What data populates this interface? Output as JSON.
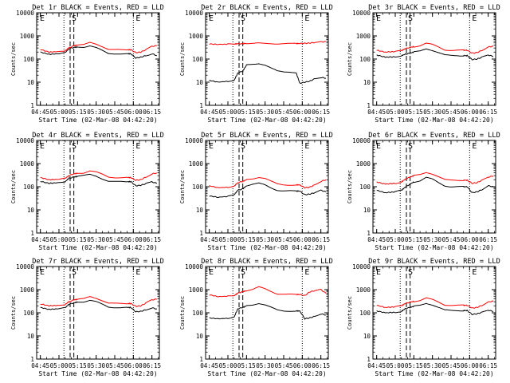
{
  "figure": {
    "xlabel": "Start Time (02-Mar-08 04:42:20)",
    "ylabel": "Counts/sec",
    "time_ticks": [
      "04:45",
      "05:00",
      "05:15",
      "05:30",
      "05:45",
      "06:00",
      "06:15"
    ],
    "y_ticks": [
      "1",
      "10",
      "100",
      "1000",
      "10000"
    ],
    "marker_labels": [
      "E",
      "S",
      "E"
    ],
    "colors": {
      "events": "#000000",
      "lld": "#ff0000"
    }
  },
  "chart_data": [
    {
      "type": "line",
      "title": "Det 1r  BLACK = Events, RED = LLD",
      "x": [
        "04:45",
        "04:52",
        "05:00",
        "05:05",
        "05:08",
        "05:12",
        "05:15",
        "05:20",
        "05:25",
        "05:30",
        "05:35",
        "05:40",
        "05:45",
        "05:50",
        "05:55",
        "05:58",
        "06:02",
        "06:06",
        "06:10",
        "06:15",
        "06:19"
      ],
      "series": [
        {
          "name": "Events",
          "values": [
            200,
            160,
            170,
            190,
            280,
            320,
            330,
            330,
            380,
            310,
            230,
            170,
            170,
            170,
            170,
            170,
            110,
            120,
            140,
            170,
            140
          ]
        },
        {
          "name": "LLD",
          "values": [
            260,
            200,
            210,
            230,
            300,
            380,
            400,
            410,
            520,
            450,
            350,
            260,
            250,
            250,
            250,
            250,
            190,
            200,
            250,
            350,
            380
          ]
        }
      ],
      "ylim": [
        1,
        10000
      ],
      "yscale": "log",
      "markers": {
        "E1": "04:45",
        "gap_start": "05:04",
        "S": "05:09",
        "S2": "05:12",
        "E2": "06:00"
      }
    },
    {
      "type": "line",
      "title": "Det 2r  BLACK = Events, RED = LLD",
      "x": [
        "04:45",
        "04:52",
        "05:00",
        "05:05",
        "05:08",
        "05:12",
        "05:15",
        "05:20",
        "05:25",
        "05:30",
        "05:35",
        "05:40",
        "05:45",
        "05:50",
        "05:55",
        "05:58",
        "06:02",
        "06:06",
        "06:10",
        "06:15",
        "06:19"
      ],
      "series": [
        {
          "name": "Events",
          "values": [
            12,
            10,
            11,
            12,
            25,
            30,
            55,
            60,
            65,
            55,
            40,
            30,
            28,
            28,
            26,
            9,
            10,
            11,
            14,
            16,
            15
          ]
        },
        {
          "name": "LLD",
          "values": [
            450,
            430,
            440,
            440,
            460,
            460,
            470,
            470,
            480,
            470,
            470,
            460,
            460,
            460,
            470,
            470,
            480,
            490,
            520,
            550,
            560
          ]
        }
      ],
      "ylim": [
        1,
        10000
      ],
      "yscale": "log",
      "markers": {
        "E1": "04:45",
        "gap_start": "05:04",
        "S": "05:09",
        "S2": "05:12",
        "E2": "06:00"
      }
    },
    {
      "type": "line",
      "title": "Det 3r  BLACK = Events, RED = LLD",
      "x": [
        "04:45",
        "04:52",
        "05:00",
        "05:05",
        "05:08",
        "05:12",
        "05:15",
        "05:20",
        "05:25",
        "05:30",
        "05:35",
        "05:40",
        "05:45",
        "05:50",
        "05:55",
        "05:58",
        "06:02",
        "06:06",
        "06:10",
        "06:15",
        "06:19"
      ],
      "series": [
        {
          "name": "Events",
          "values": [
            150,
            120,
            125,
            140,
            160,
            180,
            200,
            220,
            280,
            240,
            190,
            150,
            140,
            140,
            140,
            140,
            95,
            100,
            120,
            150,
            130
          ]
        },
        {
          "name": "LLD",
          "values": [
            240,
            200,
            210,
            230,
            280,
            320,
            340,
            380,
            480,
            420,
            330,
            250,
            240,
            240,
            240,
            240,
            180,
            190,
            240,
            330,
            360
          ]
        }
      ],
      "ylim": [
        1,
        10000
      ],
      "yscale": "log",
      "markers": {
        "E1": "04:45",
        "gap_start": "05:04",
        "S": "05:09",
        "S2": "05:12",
        "E2": "06:00"
      }
    },
    {
      "type": "line",
      "title": "Det 4r  BLACK = Events, RED = LLD",
      "x": [
        "04:45",
        "04:52",
        "05:00",
        "05:05",
        "05:08",
        "05:12",
        "05:15",
        "05:20",
        "05:25",
        "05:30",
        "05:35",
        "05:40",
        "05:45",
        "05:50",
        "05:55",
        "05:58",
        "06:02",
        "06:06",
        "06:10",
        "06:15",
        "06:19"
      ],
      "series": [
        {
          "name": "Events",
          "values": [
            170,
            140,
            150,
            165,
            230,
            260,
            280,
            300,
            340,
            290,
            220,
            170,
            165,
            165,
            165,
            165,
            110,
            115,
            135,
            160,
            140
          ]
        },
        {
          "name": "LLD",
          "values": [
            250,
            200,
            210,
            230,
            300,
            360,
            380,
            400,
            490,
            430,
            340,
            260,
            250,
            250,
            250,
            250,
            190,
            200,
            260,
            360,
            390
          ]
        }
      ],
      "ylim": [
        1,
        10000
      ],
      "yscale": "log",
      "markers": {
        "E1": "04:45",
        "gap_start": "05:04",
        "S": "05:09",
        "S2": "05:12",
        "E2": "06:00"
      }
    },
    {
      "type": "line",
      "title": "Det 5r  BLACK = Events, RED = LLD",
      "x": [
        "04:45",
        "04:52",
        "05:00",
        "05:05",
        "05:08",
        "05:12",
        "05:15",
        "05:20",
        "05:25",
        "05:30",
        "05:35",
        "05:40",
        "05:45",
        "05:50",
        "05:55",
        "05:58",
        "06:02",
        "06:06",
        "06:10",
        "06:15",
        "06:19"
      ],
      "series": [
        {
          "name": "Events",
          "values": [
            40,
            35,
            38,
            45,
            70,
            80,
            110,
            125,
            140,
            120,
            90,
            70,
            65,
            65,
            65,
            65,
            45,
            48,
            55,
            70,
            60
          ]
        },
        {
          "name": "LLD",
          "values": [
            110,
            90,
            95,
            105,
            150,
            170,
            200,
            220,
            260,
            230,
            170,
            130,
            120,
            120,
            120,
            120,
            90,
            95,
            120,
            170,
            200
          ]
        }
      ],
      "ylim": [
        1,
        10000
      ],
      "yscale": "log",
      "markers": {
        "E1": "04:45",
        "gap_start": "05:04",
        "S": "05:09",
        "S2": "05:12",
        "E2": "06:00"
      }
    },
    {
      "type": "line",
      "title": "Det 6r  BLACK = Events, RED = LLD",
      "x": [
        "04:45",
        "04:52",
        "05:00",
        "05:05",
        "05:08",
        "05:12",
        "05:15",
        "05:20",
        "05:25",
        "05:30",
        "05:35",
        "05:40",
        "05:45",
        "05:50",
        "05:55",
        "05:58",
        "06:02",
        "06:06",
        "06:10",
        "06:15",
        "06:19"
      ],
      "series": [
        {
          "name": "Events",
          "values": [
            70,
            55,
            60,
            70,
            95,
            130,
            160,
            180,
            250,
            210,
            150,
            110,
            100,
            100,
            100,
            100,
            55,
            60,
            75,
            110,
            100
          ]
        },
        {
          "name": "LLD",
          "values": [
            160,
            130,
            140,
            160,
            210,
            260,
            300,
            330,
            420,
            360,
            270,
            200,
            190,
            190,
            190,
            190,
            140,
            150,
            190,
            260,
            290
          ]
        }
      ],
      "ylim": [
        1,
        10000
      ],
      "yscale": "log",
      "markers": {
        "E1": "04:45",
        "gap_start": "05:04",
        "S": "05:09",
        "S2": "05:12",
        "E2": "06:00"
      }
    },
    {
      "type": "line",
      "title": "Det 7r  BLACK = Events, RED = LLD",
      "x": [
        "04:45",
        "04:52",
        "05:00",
        "05:05",
        "05:08",
        "05:12",
        "05:15",
        "05:20",
        "05:25",
        "05:30",
        "05:35",
        "05:40",
        "05:45",
        "05:50",
        "05:55",
        "05:58",
        "06:02",
        "06:06",
        "06:10",
        "06:15",
        "06:19"
      ],
      "series": [
        {
          "name": "Events",
          "values": [
            170,
            140,
            150,
            165,
            230,
            270,
            290,
            300,
            350,
            300,
            230,
            175,
            170,
            170,
            170,
            170,
            110,
            115,
            135,
            165,
            145
          ]
        },
        {
          "name": "LLD",
          "values": [
            240,
            200,
            210,
            230,
            300,
            360,
            380,
            400,
            500,
            430,
            340,
            260,
            250,
            250,
            250,
            250,
            190,
            200,
            260,
            360,
            390
          ]
        }
      ],
      "ylim": [
        1,
        10000
      ],
      "yscale": "log",
      "markers": {
        "E1": "04:45",
        "gap_start": "05:04",
        "S": "05:09",
        "S2": "05:12",
        "E2": "06:00"
      }
    },
    {
      "type": "line",
      "title": "Det 8r  BLACK = Events, RED = LLD",
      "x": [
        "04:45",
        "04:52",
        "05:00",
        "05:05",
        "05:08",
        "05:12",
        "05:15",
        "05:20",
        "05:25",
        "05:30",
        "05:35",
        "05:40",
        "05:45",
        "05:50",
        "05:55",
        "05:58",
        "06:02",
        "06:06",
        "06:10",
        "06:15",
        "06:19"
      ],
      "series": [
        {
          "name": "Events",
          "values": [
            60,
            55,
            58,
            65,
            150,
            170,
            200,
            220,
            260,
            220,
            170,
            130,
            120,
            120,
            120,
            120,
            55,
            60,
            70,
            90,
            80
          ]
        },
        {
          "name": "LLD",
          "values": [
            600,
            500,
            520,
            550,
            700,
            820,
            900,
            1000,
            1300,
            1100,
            850,
            650,
            620,
            620,
            620,
            620,
            550,
            800,
            900,
            1000,
            700
          ]
        }
      ],
      "ylim": [
        1,
        10000
      ],
      "yscale": "log",
      "markers": {
        "E1": "04:45",
        "gap_start": "05:04",
        "S": "05:09",
        "S2": "05:12",
        "E2": "06:00"
      }
    },
    {
      "type": "line",
      "title": "Det 9r  BLACK = Events, RED = LLD",
      "x": [
        "04:45",
        "04:52",
        "05:00",
        "05:05",
        "05:08",
        "05:12",
        "05:15",
        "05:20",
        "05:25",
        "05:30",
        "05:35",
        "05:40",
        "05:45",
        "05:50",
        "05:55",
        "05:58",
        "06:02",
        "06:06",
        "06:10",
        "06:15",
        "06:19"
      ],
      "series": [
        {
          "name": "Events",
          "values": [
            120,
            100,
            105,
            115,
            150,
            170,
            190,
            210,
            260,
            220,
            170,
            130,
            125,
            125,
            125,
            125,
            85,
            90,
            105,
            130,
            115
          ]
        },
        {
          "name": "LLD",
          "values": [
            210,
            170,
            180,
            200,
            250,
            290,
            310,
            340,
            430,
            370,
            290,
            220,
            210,
            210,
            210,
            210,
            160,
            170,
            210,
            290,
            320
          ]
        }
      ],
      "ylim": [
        1,
        10000
      ],
      "yscale": "log",
      "markers": {
        "E1": "04:45",
        "gap_start": "05:04",
        "S": "05:09",
        "S2": "05:12",
        "E2": "06:00"
      }
    }
  ]
}
